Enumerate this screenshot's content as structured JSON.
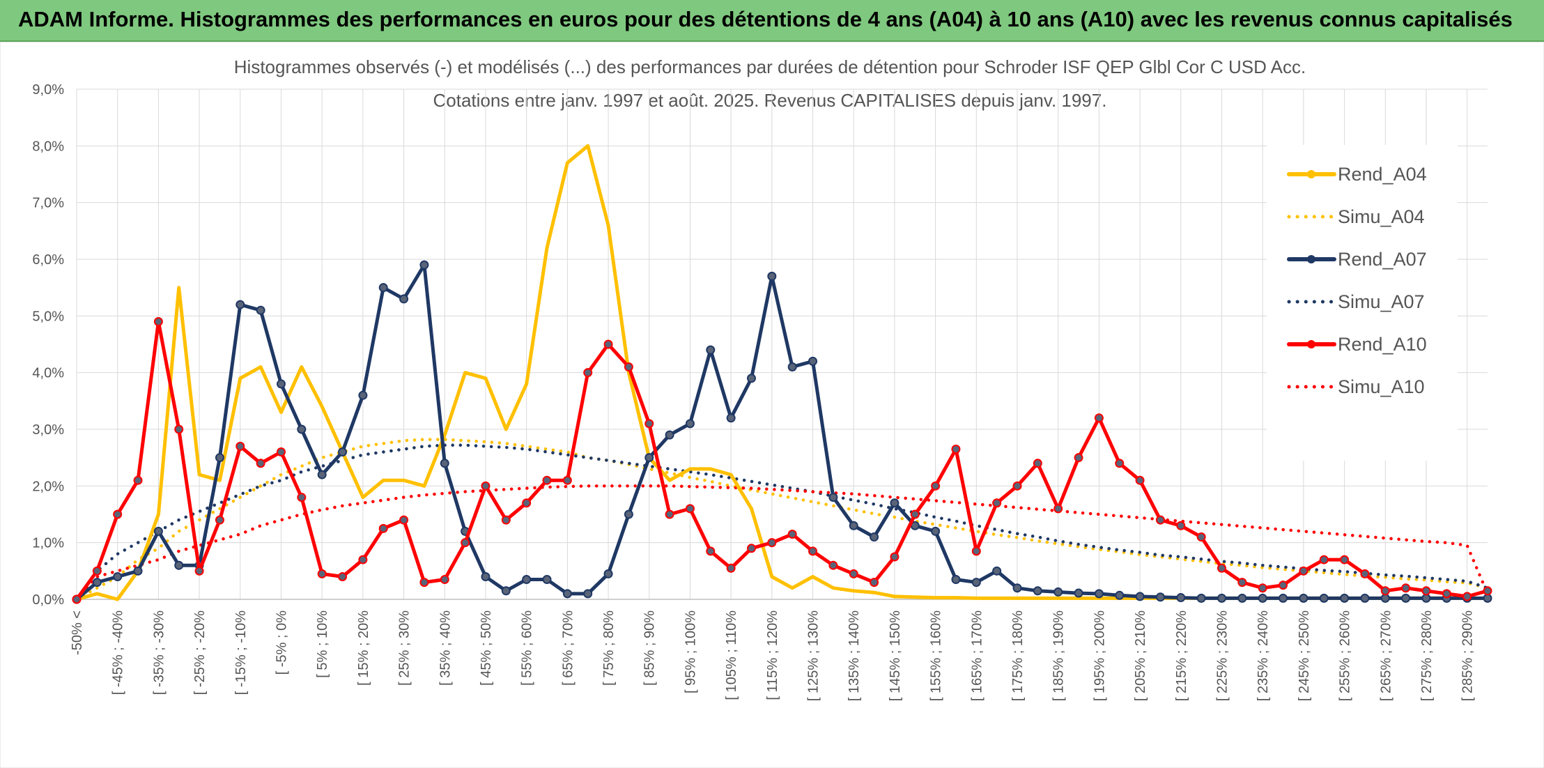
{
  "banner": {
    "title": "ADAM Informe. Histogrammes des performances en euros pour des détentions de 4 ans (A04) à 10 ans (A10) avec les revenus connus capitalisés"
  },
  "chart_data": {
    "type": "line",
    "title": "Histogrammes observés (-) et modélisés (...) des performances par durées de détention pour Schroder ISF QEP Glbl Cor C USD Acc.",
    "subtitle": "Cotations entre janv. 1997 et août. 2025. Revenus CAPITALISES depuis janv. 1997.",
    "xlabel": "",
    "ylabel": "",
    "ylim": [
      0,
      9
    ],
    "y_ticks": [
      "0,0%",
      "1,0%",
      "2,0%",
      "3,0%",
      "4,0%",
      "5,0%",
      "6,0%",
      "7,0%",
      "8,0%",
      "9,0%"
    ],
    "grid": true,
    "legend_position": "right",
    "x_labels": [
      "-50% <",
      "[ -45% ; -40%",
      "[ -35% ; -30%",
      "[ -25% ; -20%",
      "[ -15% ; -10%",
      "[ -5% ; 0%",
      "[ 5% ; 10%",
      "[ 15% ; 20%",
      "[ 25% ; 30%",
      "[ 35% ; 40%",
      "[ 45% ; 50%",
      "[ 55% ; 60%",
      "[ 65% ; 70%",
      "[ 75% ; 80%",
      "[ 85% ; 90%",
      "[ 95% ; 100%",
      "[ 105% ; 110%",
      "[ 115% ; 120%",
      "[ 125% ; 130%",
      "[ 135% ; 140%",
      "[ 145% ; 150%",
      "[ 155% ; 160%",
      "[ 165% ; 170%",
      "[ 175% ; 180%",
      "[ 185% ; 190%",
      "[ 195% ; 200%",
      "[ 205% ; 210%",
      "[ 215% ; 220%",
      "[ 225% ; 230%",
      "[ 235% ; 240%",
      "[ 245% ; 250%",
      "[ 255% ; 260%",
      "[ 265% ; 270%",
      "[ 275% ; 280%",
      "[ 285% ; 290%"
    ],
    "series": [
      {
        "name": "Rend_A04",
        "style": "solid",
        "color": "#ffc000",
        "markers": false,
        "values": [
          0,
          0.1,
          0,
          0.5,
          1.5,
          5.5,
          2.2,
          2.1,
          3.9,
          4.1,
          3.3,
          4.1,
          3.4,
          2.6,
          1.8,
          2.1,
          2.1,
          2.0,
          2.9,
          4.0,
          3.9,
          3.0,
          3.8,
          6.2,
          7.7,
          8.0,
          6.6,
          4.0,
          2.5,
          2.1,
          2.3,
          2.3,
          2.2,
          1.6,
          0.4,
          0.2,
          0.4,
          0.2,
          0.15,
          0.12,
          0.05,
          0.04,
          0.03,
          0.03,
          0.02,
          0.02,
          0.02,
          0.02,
          0.02,
          0.02,
          0.02,
          0.02,
          0.02,
          0.02,
          0.02,
          0.02,
          0.02,
          0.02,
          0.02,
          0.02,
          0.02,
          0.02,
          0.02,
          0.02,
          0.02,
          0.02,
          0.02,
          0.02,
          0.02,
          0.02
        ]
      },
      {
        "name": "Simu_A04",
        "style": "dotted",
        "color": "#ffc000",
        "values": [
          0,
          0.2,
          0.4,
          0.7,
          0.9,
          1.2,
          1.4,
          1.6,
          1.8,
          2.0,
          2.2,
          2.35,
          2.5,
          2.6,
          2.7,
          2.75,
          2.8,
          2.82,
          2.82,
          2.8,
          2.78,
          2.75,
          2.7,
          2.65,
          2.6,
          2.5,
          2.45,
          2.38,
          2.3,
          2.23,
          2.15,
          2.08,
          2.0,
          1.93,
          1.86,
          1.79,
          1.72,
          1.65,
          1.58,
          1.51,
          1.45,
          1.38,
          1.32,
          1.26,
          1.2,
          1.14,
          1.09,
          1.03,
          0.98,
          0.93,
          0.88,
          0.84,
          0.79,
          0.75,
          0.71,
          0.67,
          0.63,
          0.6,
          0.56,
          0.53,
          0.5,
          0.47,
          0.44,
          0.41,
          0.39,
          0.36,
          0.34,
          0.31,
          0.29,
          0.2
        ]
      },
      {
        "name": "Rend_A07",
        "style": "solid",
        "color": "#1f3864",
        "markers": true,
        "values": [
          0,
          0.3,
          0.4,
          0.5,
          1.2,
          0.6,
          0.6,
          2.5,
          5.2,
          5.1,
          3.8,
          3.0,
          2.2,
          2.6,
          3.6,
          5.5,
          5.3,
          5.9,
          2.4,
          1.2,
          0.4,
          0.15,
          0.35,
          0.35,
          0.1,
          0.1,
          0.45,
          1.5,
          2.5,
          2.9,
          3.1,
          4.4,
          3.2,
          3.9,
          5.7,
          4.1,
          4.2,
          1.8,
          1.3,
          1.1,
          1.7,
          1.3,
          1.2,
          0.35,
          0.3,
          0.5,
          0.2,
          0.15,
          0.13,
          0.11,
          0.1,
          0.07,
          0.05,
          0.04,
          0.03,
          0.02,
          0.02,
          0.02,
          0.02,
          0.02,
          0.02,
          0.02,
          0.02,
          0.02,
          0.02,
          0.02,
          0.02,
          0.02,
          0.02,
          0.02
        ]
      },
      {
        "name": "Simu_A07",
        "style": "dotted",
        "color": "#1f3864",
        "values": [
          0,
          0.5,
          0.8,
          1.0,
          1.2,
          1.4,
          1.55,
          1.7,
          1.85,
          2.0,
          2.1,
          2.25,
          2.35,
          2.45,
          2.55,
          2.6,
          2.65,
          2.7,
          2.72,
          2.72,
          2.7,
          2.68,
          2.65,
          2.6,
          2.55,
          2.5,
          2.45,
          2.4,
          2.35,
          2.3,
          2.25,
          2.2,
          2.14,
          2.08,
          2.02,
          1.96,
          1.9,
          1.82,
          1.75,
          1.68,
          1.6,
          1.53,
          1.45,
          1.38,
          1.3,
          1.23,
          1.16,
          1.1,
          1.03,
          0.97,
          0.92,
          0.87,
          0.83,
          0.78,
          0.75,
          0.71,
          0.67,
          0.64,
          0.6,
          0.57,
          0.54,
          0.51,
          0.49,
          0.46,
          0.43,
          0.41,
          0.38,
          0.35,
          0.32,
          0.2
        ]
      },
      {
        "name": "Rend_A10",
        "style": "solid",
        "color": "#ff0000",
        "markers": true,
        "values": [
          0,
          0.5,
          1.5,
          2.1,
          4.9,
          3.0,
          0.5,
          1.4,
          2.7,
          2.4,
          2.6,
          1.8,
          0.45,
          0.4,
          0.7,
          1.25,
          1.4,
          0.3,
          0.35,
          1.0,
          2.0,
          1.4,
          1.7,
          2.1,
          2.1,
          4.0,
          4.5,
          4.1,
          3.1,
          1.5,
          1.6,
          0.85,
          0.55,
          0.9,
          1.0,
          1.15,
          0.85,
          0.6,
          0.45,
          0.3,
          0.75,
          1.5,
          2.0,
          2.65,
          0.85,
          1.7,
          2.0,
          2.4,
          1.6,
          2.5,
          3.2,
          2.4,
          2.1,
          1.4,
          1.3,
          1.1,
          0.55,
          0.3,
          0.2,
          0.25,
          0.5,
          0.7,
          0.7,
          0.45,
          0.15,
          0.2,
          0.15,
          0.1,
          0.05,
          0.15
        ]
      },
      {
        "name": "Simu_A10",
        "style": "dotted",
        "color": "#ff0000",
        "values": [
          0,
          0.4,
          0.5,
          0.6,
          0.7,
          0.85,
          0.95,
          1.05,
          1.15,
          1.3,
          1.4,
          1.5,
          1.58,
          1.65,
          1.7,
          1.75,
          1.8,
          1.84,
          1.87,
          1.9,
          1.92,
          1.94,
          1.96,
          1.98,
          1.99,
          2.0,
          2.0,
          2.0,
          2.0,
          2.0,
          1.99,
          1.98,
          1.97,
          1.96,
          1.94,
          1.92,
          1.9,
          1.88,
          1.86,
          1.83,
          1.8,
          1.77,
          1.74,
          1.71,
          1.68,
          1.65,
          1.62,
          1.59,
          1.56,
          1.53,
          1.5,
          1.47,
          1.44,
          1.41,
          1.38,
          1.35,
          1.32,
          1.29,
          1.26,
          1.23,
          1.2,
          1.17,
          1.14,
          1.11,
          1.08,
          1.05,
          1.02,
          1.0,
          0.95,
          0.1
        ]
      }
    ]
  }
}
